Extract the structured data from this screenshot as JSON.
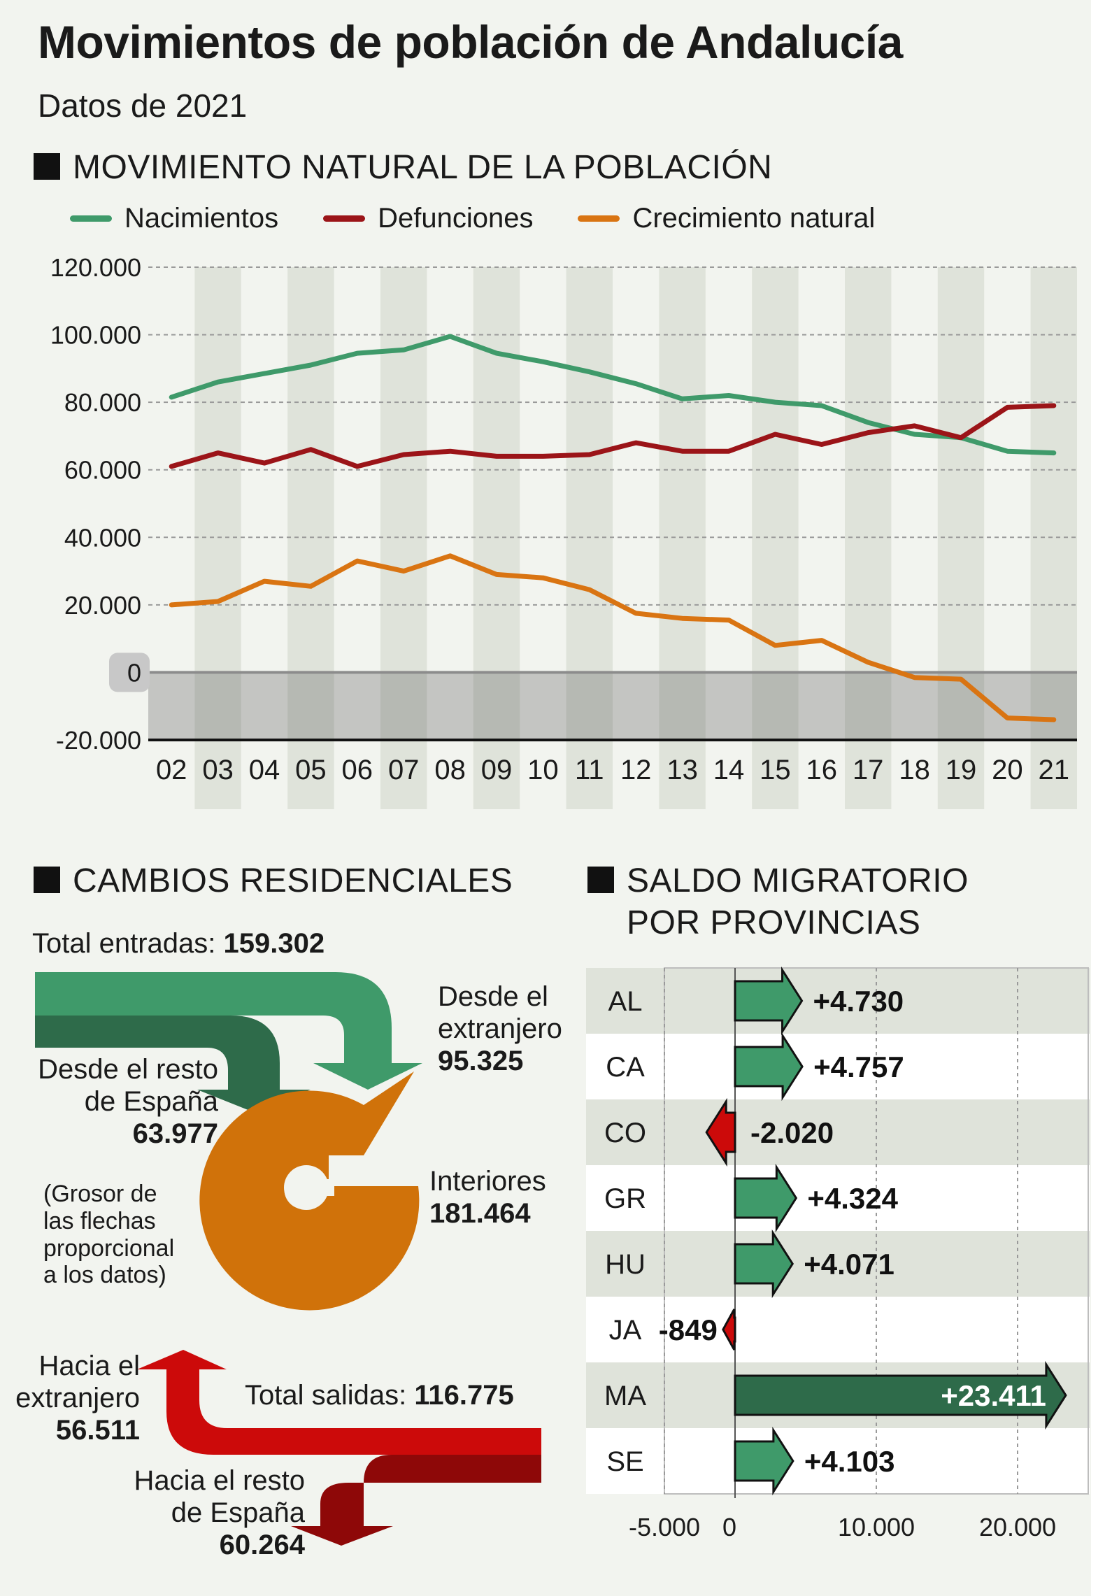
{
  "header": {
    "title": "Movimientos de población de Andalucía",
    "subtitle": "Datos de 2021"
  },
  "sections": {
    "natural": "MOVIMIENTO NATURAL DE LA POBLACIÓN",
    "residencial": "CAMBIOS RESIDENCIALES",
    "saldo_line1": "SALDO MIGRATORIO",
    "saldo_line2": "POR PROVINCIAS"
  },
  "colors": {
    "nacimientos": "#3f9a6a",
    "defunciones": "#9b1418",
    "crecimiento": "#d97412",
    "arrow_green_light": "#3f9a6a",
    "arrow_green_dark": "#2e6b4a",
    "arrow_red": "#cc0a0a",
    "arrow_red_dark": "#8e0808",
    "interiores": "#d0720a"
  },
  "chart_data": [
    {
      "type": "line",
      "title": "MOVIMIENTO NATURAL DE LA POBLACIÓN",
      "x": [
        "02",
        "03",
        "04",
        "05",
        "06",
        "07",
        "08",
        "09",
        "10",
        "11",
        "12",
        "13",
        "14",
        "15",
        "16",
        "17",
        "18",
        "19",
        "20",
        "21"
      ],
      "ylim": [
        -20000,
        120000
      ],
      "yticks": [
        "120.000",
        "100.000",
        "80.000",
        "60.000",
        "40.000",
        "20.000",
        "0",
        "-20.000"
      ],
      "ytick_values": [
        120000,
        100000,
        80000,
        60000,
        40000,
        20000,
        0,
        -20000
      ],
      "legend_position": "top",
      "series": [
        {
          "name": "Nacimientos",
          "color": "#3f9a6a",
          "values": [
            81500,
            86000,
            88500,
            91000,
            94500,
            95500,
            99500,
            94500,
            92000,
            89000,
            85500,
            81000,
            82000,
            80000,
            79000,
            74000,
            70500,
            69500,
            65500,
            65000
          ]
        },
        {
          "name": "Defunciones",
          "color": "#9b1418",
          "values": [
            61000,
            65000,
            62000,
            66000,
            61000,
            64500,
            65500,
            64000,
            64000,
            64500,
            68000,
            65500,
            65500,
            70500,
            67500,
            71000,
            73000,
            69500,
            78500,
            79000
          ]
        },
        {
          "name": "Crecimiento natural",
          "color": "#d97412",
          "values": [
            20000,
            21000,
            27000,
            25500,
            33000,
            30000,
            34500,
            29000,
            28000,
            24500,
            17500,
            16000,
            15500,
            8000,
            9500,
            3000,
            -1500,
            -2000,
            -13500,
            -14000
          ]
        }
      ]
    },
    {
      "type": "bar",
      "title": "SALDO MIGRATORIO POR PROVINCIAS",
      "categories": [
        "AL",
        "CA",
        "CO",
        "GR",
        "HU",
        "JA",
        "MA",
        "SE"
      ],
      "values": [
        4730,
        4757,
        -2020,
        4324,
        4071,
        -849,
        23411,
        4103
      ],
      "labels": [
        "+4.730",
        "+4.757",
        "-2.020",
        "+4.324",
        "+4.071",
        "-849",
        "+23.411",
        "+4.103"
      ],
      "xlim": [
        -5000,
        25000
      ],
      "xticks": [
        "-5.000",
        "0",
        "10.000",
        "20.000"
      ],
      "xtick_values": [
        -5000,
        0,
        10000,
        20000
      ]
    }
  ],
  "residenciales": {
    "total_entradas_label": "Total entradas:",
    "total_entradas_value": "159.302",
    "extranjero_in_line1": "Desde el",
    "extranjero_in_line2": "extranjero",
    "extranjero_in_value": "95.325",
    "resto_in_line1": "Desde el resto",
    "resto_in_line2": "de España",
    "resto_in_value": "63.977",
    "interiores_label": "Interiores",
    "interiores_value": "181.464",
    "note_line1": "(Grosor de",
    "note_line2": "las flechas",
    "note_line3": "proporcional",
    "note_line4": "a los datos)",
    "extranjero_out_line1": "Hacia el",
    "extranjero_out_line2": "extranjero",
    "extranjero_out_value": "56.511",
    "total_salidas_label": "Total salidas:",
    "total_salidas_value": "116.775",
    "resto_out_line1": "Hacia el resto",
    "resto_out_line2": "de España",
    "resto_out_value": "60.264"
  }
}
